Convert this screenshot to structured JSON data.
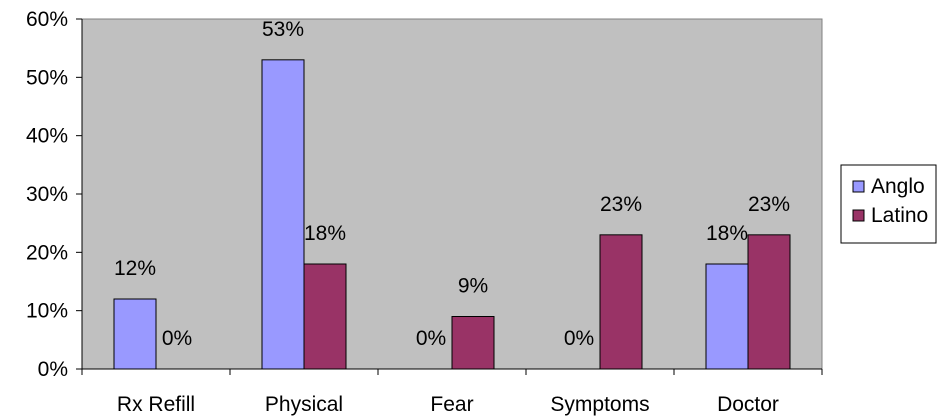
{
  "chart_data": {
    "type": "bar",
    "categories": [
      "Rx Refill",
      "Physical",
      "Fear",
      "Symptoms",
      "Doctor"
    ],
    "series": [
      {
        "name": "Anglo",
        "values": [
          12,
          53,
          0,
          0,
          18
        ],
        "labels": [
          "12%",
          "53%",
          "0%",
          "0%",
          "18%"
        ],
        "color": "#9999ff"
      },
      {
        "name": "Latino",
        "values": [
          0,
          18,
          9,
          23,
          23
        ],
        "labels": [
          "0%",
          "18%",
          "9%",
          "23%",
          "23%"
        ],
        "color": "#993366"
      }
    ],
    "ylim": [
      0,
      60
    ],
    "yticks": [
      "0%",
      "10%",
      "20%",
      "30%",
      "40%",
      "50%",
      "60%"
    ],
    "grid": false,
    "legend_position": "right",
    "plot_background": "#c0c0c0"
  }
}
